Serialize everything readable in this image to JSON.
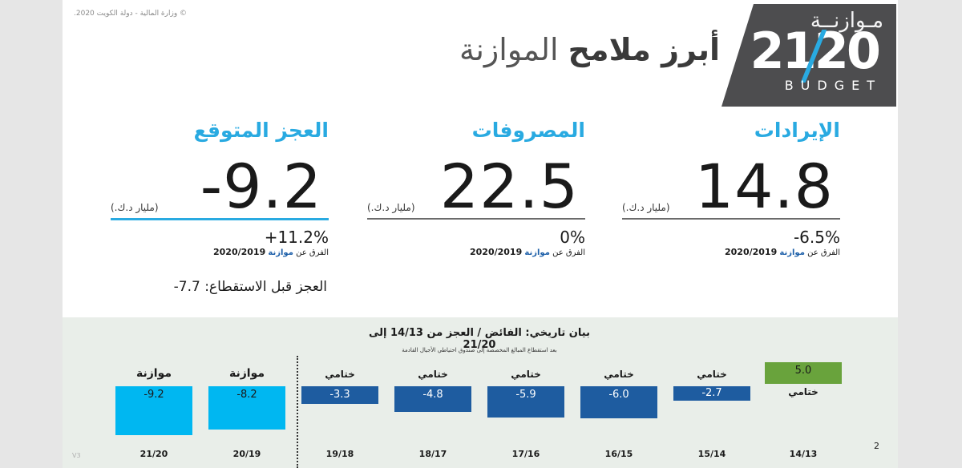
{
  "copyright": "© وزارة المالية - دولة الكويت 2020.",
  "logo": {
    "arabic": "مـوازنــة",
    "number": "2120",
    "english": "BUDGET"
  },
  "title": {
    "bold": "أبرز ملامح",
    "light": "الموازنة"
  },
  "metrics": [
    {
      "title": "الإيرادات",
      "value": "14.8",
      "unit": "(مليار د.ك.)",
      "change": "-6.5%",
      "compare_prefix": "الفرق عن",
      "compare_highlight": "موازنة",
      "compare_year": "2020/2019"
    },
    {
      "title": "المصروفات",
      "value": "22.5",
      "unit": "(مليار د.ك.)",
      "change": "0%",
      "compare_prefix": "الفرق عن",
      "compare_highlight": "موازنة",
      "compare_year": "2020/2019"
    },
    {
      "title": "العجز المتوقع",
      "value": "-9.2",
      "unit": "(مليار د.ك.)",
      "change": "+11.2%",
      "compare_prefix": "الفرق عن",
      "compare_highlight": "موازنة",
      "compare_year": "2020/2019"
    }
  ],
  "deficit_before_deduction": "العجز قبل الاستقطاع: 7.7-",
  "history": {
    "title": "بيان تاريخي: الفائض / العجز من 14/13 إلى 21/20",
    "note": "بعد استقطاع المبالغ المخصصة إلى صندوق احتياطي الأجيال القادمة",
    "bars": [
      {
        "year": "14/13",
        "value": "5.0",
        "tag": "ختامي"
      },
      {
        "year": "15/14",
        "value": "-2.7",
        "tag": "ختامي"
      },
      {
        "year": "16/15",
        "value": "-6.0",
        "tag": "ختامي"
      },
      {
        "year": "17/16",
        "value": "-5.9",
        "tag": "ختامي"
      },
      {
        "year": "18/17",
        "value": "-4.8",
        "tag": "ختامي"
      },
      {
        "year": "19/18",
        "value": "-3.3",
        "tag": "ختامي"
      },
      {
        "year": "20/19",
        "value": "-8.2",
        "tag": "موازنة"
      },
      {
        "year": "21/20",
        "value": "-9.2",
        "tag": "موازنة"
      }
    ]
  },
  "page_number": "2",
  "version": "V3",
  "colors": {
    "accent": "#29aae1",
    "actual_bar": "#1e5ca0",
    "budget_bar": "#00b7f1",
    "surplus_bar": "#69a33c",
    "logo_bg": "#4d4d4f"
  }
}
